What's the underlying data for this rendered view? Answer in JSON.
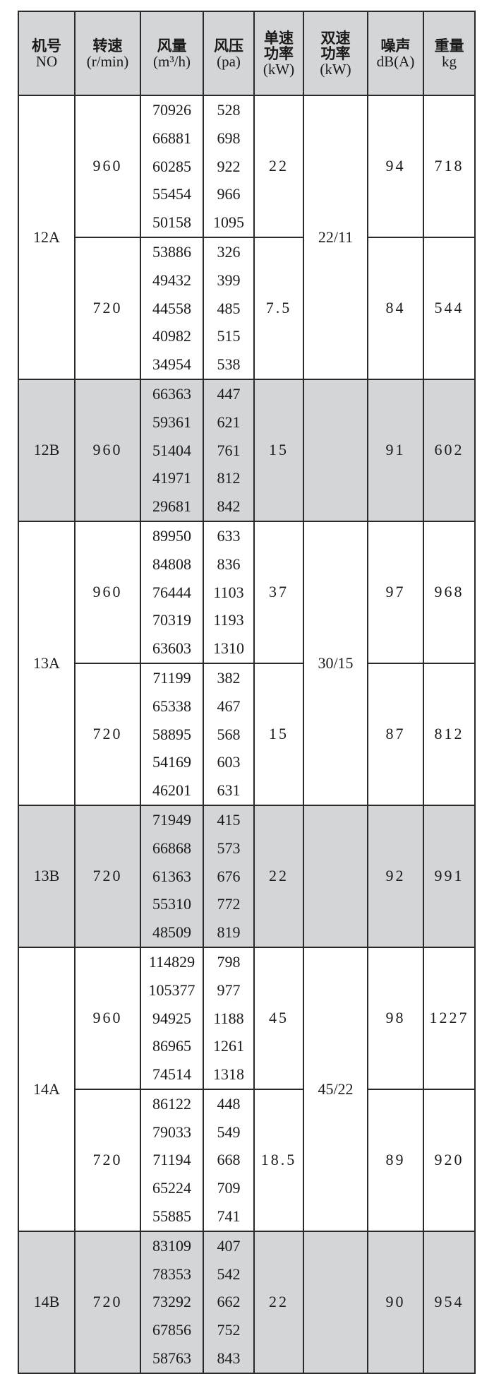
{
  "headers": [
    {
      "zh": "机号",
      "en": "NO"
    },
    {
      "zh": "转速",
      "en": "(r/min)"
    },
    {
      "zh": "风量",
      "en": "(m³/h)"
    },
    {
      "zh": "风压",
      "en": "(pa)"
    },
    {
      "zh": "单速功率",
      "en": "(kW)"
    },
    {
      "zh": "双速功率",
      "en": "(kW)"
    },
    {
      "zh": "噪声",
      "en": "dB(A)"
    },
    {
      "zh": "重量",
      "en": "kg"
    }
  ],
  "colors": {
    "header_bg": "#d4d5d7",
    "shaded_row_bg": "#d4d5d7",
    "border": "#2a2a2a"
  },
  "models": [
    {
      "no": "12A",
      "dual_power": "22/11",
      "shaded": false,
      "groups": [
        {
          "speed": "960",
          "flow": [
            "70926",
            "66881",
            "60285",
            "55454",
            "50158"
          ],
          "pressure": [
            "528",
            "698",
            "922",
            "966",
            "1095"
          ],
          "power": "22",
          "noise": "94",
          "weight": "718"
        },
        {
          "speed": "720",
          "flow": [
            "53886",
            "49432",
            "44558",
            "40982",
            "34954"
          ],
          "pressure": [
            "326",
            "399",
            "485",
            "515",
            "538"
          ],
          "power": "7.5",
          "noise": "84",
          "weight": "544"
        }
      ]
    },
    {
      "no": "12B",
      "dual_power": "",
      "shaded": true,
      "groups": [
        {
          "speed": "960",
          "flow": [
            "66363",
            "59361",
            "51404",
            "41971",
            "29681"
          ],
          "pressure": [
            "447",
            "621",
            "761",
            "812",
            "842"
          ],
          "power": "15",
          "noise": "91",
          "weight": "602"
        }
      ]
    },
    {
      "no": "13A",
      "dual_power": "30/15",
      "shaded": false,
      "groups": [
        {
          "speed": "960",
          "flow": [
            "89950",
            "84808",
            "76444",
            "70319",
            "63603"
          ],
          "pressure": [
            "633",
            "836",
            "1103",
            "1193",
            "1310"
          ],
          "power": "37",
          "noise": "97",
          "weight": "968"
        },
        {
          "speed": "720",
          "flow": [
            "71199",
            "65338",
            "58895",
            "54169",
            "46201"
          ],
          "pressure": [
            "382",
            "467",
            "568",
            "603",
            "631"
          ],
          "power": "15",
          "noise": "87",
          "weight": "812"
        }
      ]
    },
    {
      "no": "13B",
      "dual_power": "",
      "shaded": true,
      "groups": [
        {
          "speed": "720",
          "flow": [
            "71949",
            "66868",
            "61363",
            "55310",
            "48509"
          ],
          "pressure": [
            "415",
            "573",
            "676",
            "772",
            "819"
          ],
          "power": "22",
          "noise": "92",
          "weight": "991"
        }
      ]
    },
    {
      "no": "14A",
      "dual_power": "45/22",
      "shaded": false,
      "groups": [
        {
          "speed": "960",
          "flow": [
            "114829",
            "105377",
            "94925",
            "86965",
            "74514"
          ],
          "pressure": [
            "798",
            "977",
            "1188",
            "1261",
            "1318"
          ],
          "power": "45",
          "noise": "98",
          "weight": "1227"
        },
        {
          "speed": "720",
          "flow": [
            "86122",
            "79033",
            "71194",
            "65224",
            "55885"
          ],
          "pressure": [
            "448",
            "549",
            "668",
            "709",
            "741"
          ],
          "power": "18.5",
          "noise": "89",
          "weight": "920"
        }
      ]
    },
    {
      "no": "14B",
      "dual_power": "",
      "shaded": true,
      "groups": [
        {
          "speed": "720",
          "flow": [
            "83109",
            "78353",
            "73292",
            "67856",
            "58763"
          ],
          "pressure": [
            "407",
            "542",
            "662",
            "752",
            "843"
          ],
          "power": "22",
          "noise": "90",
          "weight": "954"
        }
      ]
    }
  ]
}
